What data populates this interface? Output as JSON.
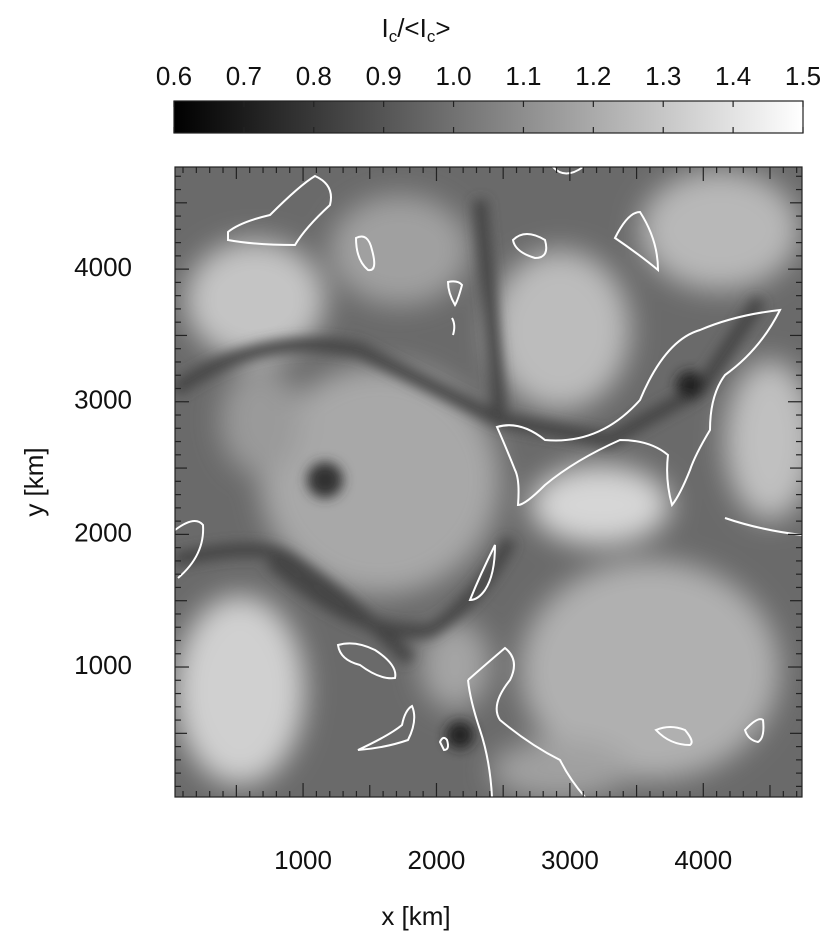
{
  "chart_data": {
    "type": "image",
    "colorbar_label": [
      "I",
      "c",
      "/<I",
      "c",
      ">"
    ],
    "clim": [
      0.6,
      1.5
    ],
    "cticks": [
      0.6,
      0.7,
      0.8,
      0.9,
      {
        "value": 1,
        "label": "1.0"
      },
      1.1,
      1.2,
      1.3,
      1.4,
      1.5
    ],
    "xlabel": "x [km]",
    "ylabel": "y [km]",
    "xlim": [
      40,
      4740
    ],
    "ylim": [
      20,
      4770
    ],
    "xticks": [
      1000,
      2000,
      3000,
      4000
    ],
    "yticks": [
      1000,
      2000,
      3000,
      4000
    ],
    "xminorticks": [
      100,
      200,
      300,
      400,
      500,
      600,
      700,
      800,
      900,
      1100,
      1200,
      1300,
      1400,
      1500,
      1600,
      1700,
      1800,
      1900,
      2100,
      2200,
      2300,
      2400,
      2500,
      2600,
      2700,
      2800,
      2900,
      3100,
      3200,
      3300,
      3400,
      3500,
      3600,
      3700,
      3800,
      3900,
      4100,
      4200,
      4300,
      4400,
      4500,
      4600,
      4700
    ],
    "yminorticks": [
      100,
      200,
      300,
      400,
      500,
      600,
      700,
      800,
      900,
      1100,
      1200,
      1300,
      1400,
      1500,
      1600,
      1700,
      1800,
      1900,
      2100,
      2200,
      2300,
      2400,
      2500,
      2600,
      2700,
      2800,
      2900,
      3100,
      3200,
      3300,
      3400,
      3500,
      3600,
      3700,
      3800,
      3900,
      4100,
      4200,
      4300,
      4400,
      4500,
      4600,
      4700
    ]
  }
}
